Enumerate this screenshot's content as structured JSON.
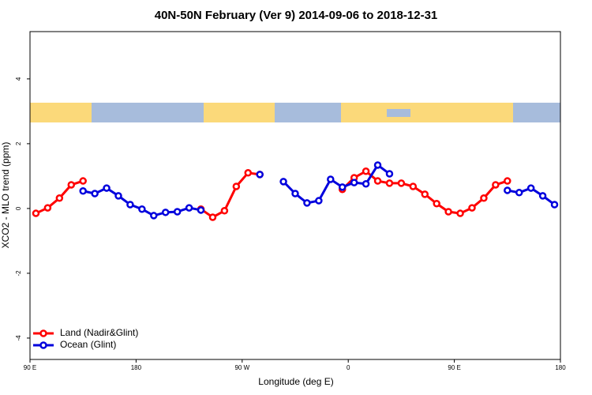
{
  "chart_data": {
    "type": "line",
    "title": "40N-50N February (Ver 9)   2014-09-06 to 2018-12-31",
    "x_label": "Longitude (deg E)",
    "y_label": "XCO2 - MLO trend (ppm)",
    "x": [
      95,
      105,
      115,
      125,
      135,
      145,
      155,
      165,
      175,
      185,
      195,
      205,
      215,
      225,
      235,
      245,
      255,
      265,
      275,
      285,
      295,
      305,
      315,
      325,
      335,
      345,
      355,
      365,
      375,
      385,
      395,
      405,
      415,
      425,
      435,
      445,
      455,
      465,
      475,
      485,
      495,
      505,
      515,
      525,
      535
    ],
    "series": [
      {
        "name": "Land (Nadir&Glint)",
        "color": "#ff0000",
        "values": [
          -0.15,
          0.02,
          0.32,
          0.73,
          0.85,
          null,
          null,
          null,
          null,
          null,
          null,
          null,
          null,
          null,
          -0.02,
          -0.27,
          -0.07,
          0.68,
          1.1,
          1.05,
          null,
          null,
          null,
          null,
          null,
          null,
          0.59,
          0.95,
          1.15,
          0.85,
          0.78,
          0.78,
          0.68,
          0.44,
          0.15,
          -0.1,
          -0.15,
          0.02,
          0.32,
          0.73,
          0.85,
          null,
          null,
          null,
          null
        ]
      },
      {
        "name": "Ocean (Glint)",
        "color": "#0000dd",
        "values": [
          null,
          null,
          null,
          null,
          0.54,
          0.46,
          0.63,
          0.39,
          0.12,
          -0.02,
          -0.22,
          -0.12,
          -0.1,
          0.02,
          -0.05,
          null,
          null,
          null,
          null,
          1.05,
          null,
          0.83,
          0.46,
          0.17,
          0.24,
          0.9,
          0.66,
          0.8,
          0.76,
          1.34,
          1.07,
          null,
          null,
          null,
          null,
          null,
          null,
          null,
          null,
          null,
          0.56,
          0.49,
          0.63,
          0.39,
          0.12
        ]
      }
    ],
    "xlim": [
      90,
      540
    ],
    "xticks": [
      {
        "value": 90,
        "label": "90 E"
      },
      {
        "value": 180,
        "label": "180"
      },
      {
        "value": 270,
        "label": "90 W"
      },
      {
        "value": 360,
        "label": "0"
      },
      {
        "value": 450,
        "label": "90 E"
      },
      {
        "value": 540,
        "label": "180"
      }
    ],
    "ylim": [
      -4.66,
      5.46
    ],
    "yticks": [
      -4,
      -2,
      0,
      2,
      4
    ],
    "legend": "bottom-left"
  }
}
